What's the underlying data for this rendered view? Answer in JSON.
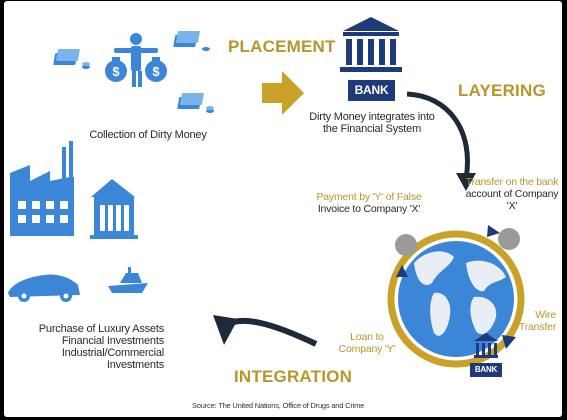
{
  "stages": {
    "placement": "PLACEMENT",
    "layering": "LAYERING",
    "integration": "INTEGRATION"
  },
  "captions": {
    "collection": "Collection of Dirty Money",
    "dirty_money_line1": "Dirty Money integrates into",
    "dirty_money_line2": "the Financial System",
    "purchase_line1": "Purchase of Luxury Assets",
    "purchase_line2": "Financial Investments",
    "purchase_line3": "Industrial/Commercial",
    "purchase_line4": "Investments"
  },
  "layering_labels": {
    "payment_line1": "Payment by 'Y' of False",
    "payment_line2": "Invoice to Company 'X'",
    "transfer_line1": "Transfer on the bank",
    "transfer_line2": "account of Company 'X'",
    "wire_line1": "Wire",
    "wire_line2": "Transfer",
    "loan_line1": "Loan to",
    "loan_line2": "Company 'Y'"
  },
  "bank_labels": {
    "top_bank": "BANK",
    "small_bank": "BANK"
  },
  "source": "Source: The United Nations, Office of Drugs and Crime",
  "colors": {
    "blue": "#3b86d6",
    "navy": "#1f3a7a",
    "gold": "#b8962a",
    "ring": "#c9a227",
    "dark": "#1e2a3a"
  }
}
